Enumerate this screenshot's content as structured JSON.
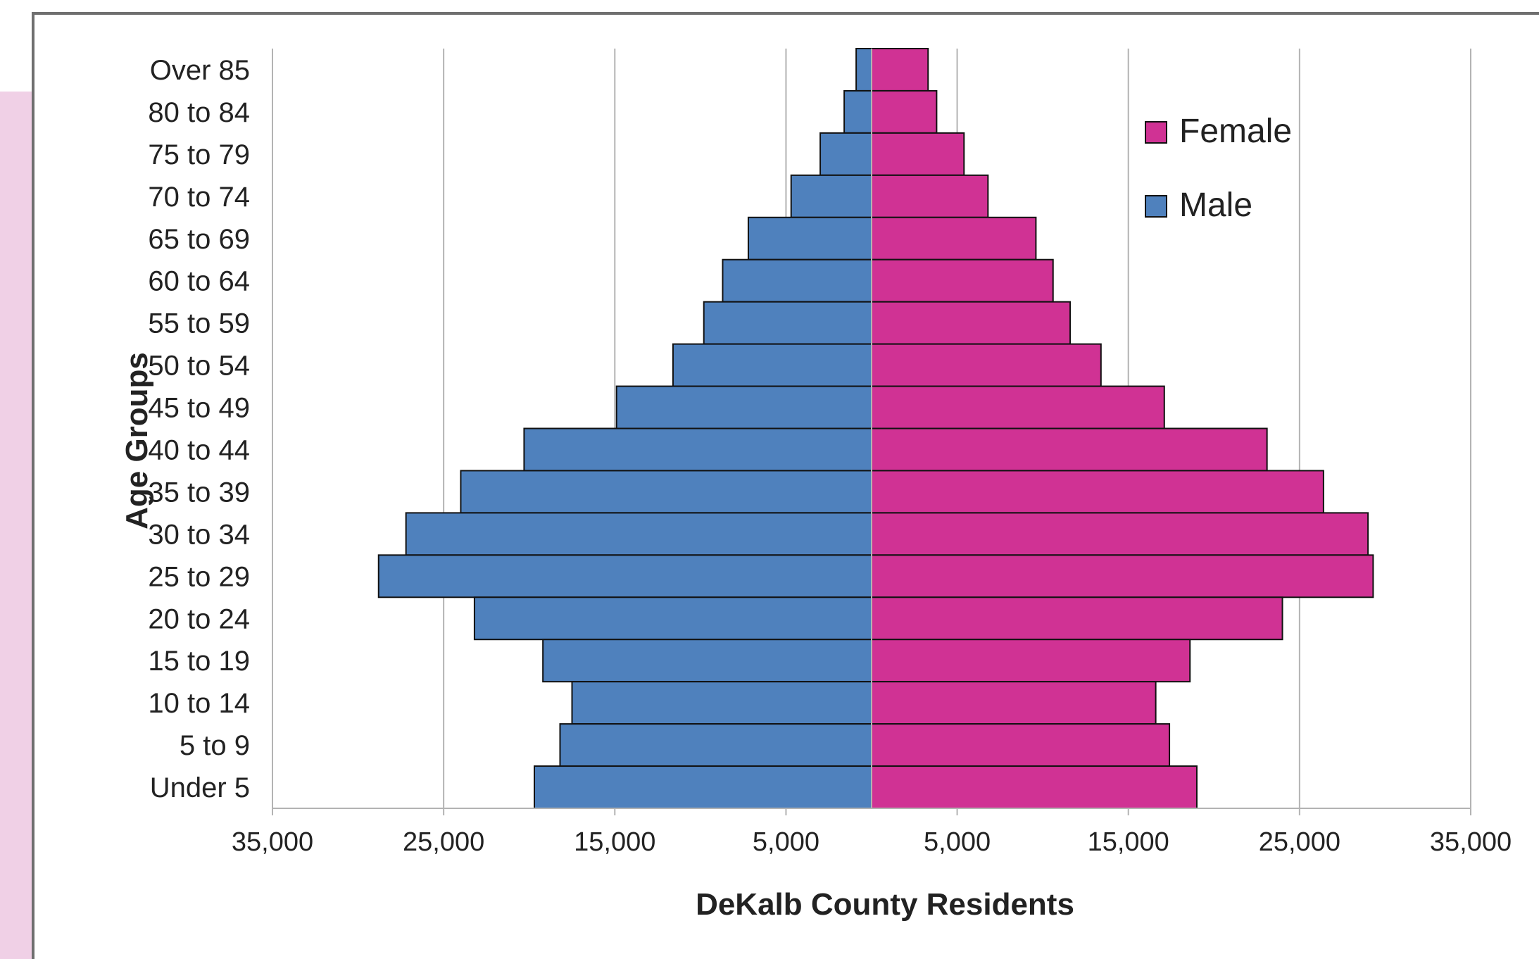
{
  "chart_data": {
    "type": "bar",
    "orientation": "horizontal",
    "subtype": "population-pyramid",
    "categories": [
      "Over 85",
      "80 to 84",
      "75 to 79",
      "70 to 74",
      "65 to 69",
      "60 to 64",
      "55 to 59",
      "50 to 54",
      "45 to 49",
      "40 to 44",
      "35 to 39",
      "30 to 34",
      "25 to 29",
      "20 to 24",
      "15 to 19",
      "10 to 14",
      "5 to 9",
      "Under 5"
    ],
    "series": [
      {
        "name": "Male",
        "color": "#4f81bd",
        "values": [
          900,
          1600,
          3000,
          4700,
          7200,
          8700,
          9800,
          11600,
          14900,
          20300,
          24000,
          27200,
          28800,
          23200,
          19200,
          17500,
          18200,
          19700
        ]
      },
      {
        "name": "Female",
        "color": "#d03294",
        "values": [
          3300,
          3800,
          5400,
          6800,
          9600,
          10600,
          11600,
          13400,
          17100,
          23100,
          26400,
          29000,
          29300,
          24000,
          18600,
          16600,
          17400,
          19000
        ]
      }
    ],
    "x_tick_labels": [
      "35,000",
      "25,000",
      "15,000",
      "5,000",
      "5,000",
      "15,000",
      "25,000",
      "35,000"
    ],
    "x_tick_values": [
      -35000,
      -25000,
      -15000,
      -5000,
      5000,
      15000,
      25000,
      35000
    ],
    "xlim": [
      -35000,
      35000
    ],
    "xlabel": "DeKalb County Residents",
    "ylabel": "Age Groups",
    "grid": "vertical",
    "legend": {
      "placement": "top-right",
      "order": [
        "Female",
        "Male"
      ]
    }
  },
  "colors": {
    "frame_border": "#6f6f6f",
    "side_panel": "#f0d0e6",
    "grid": "#b3b3b3",
    "bar_outline": "#111111"
  }
}
